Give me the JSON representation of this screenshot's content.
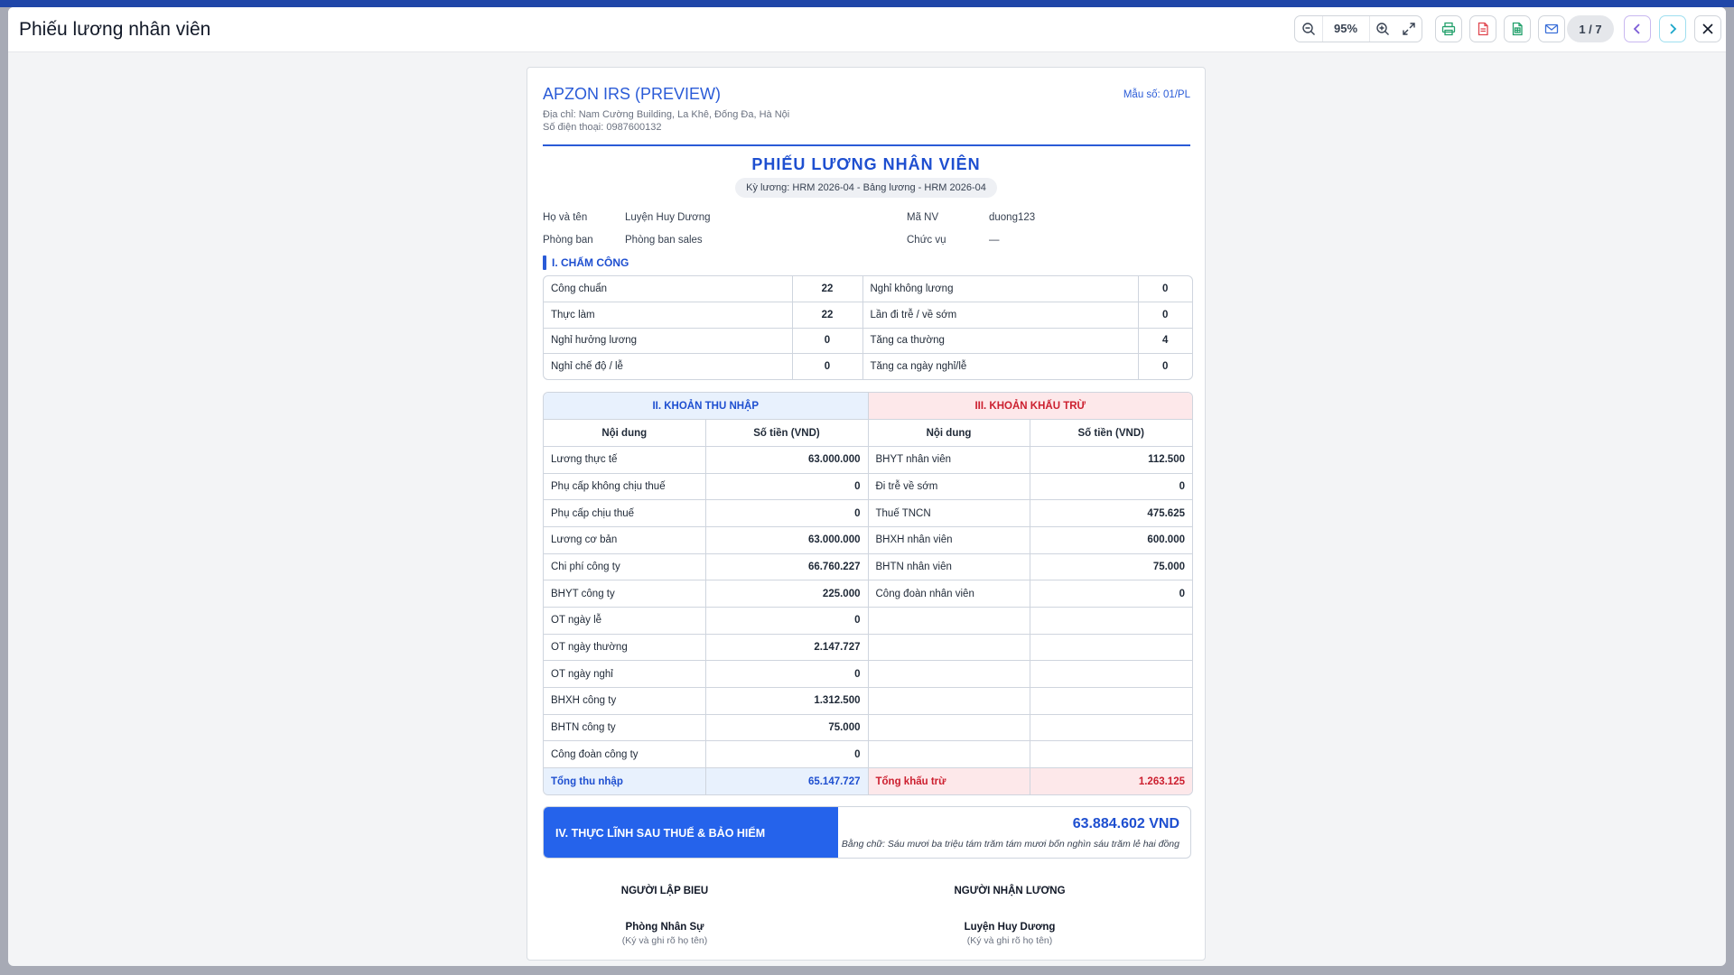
{
  "window": {
    "title": "Phiếu lương nhân viên"
  },
  "toolbar": {
    "zoom": "95%",
    "page": "1 / 7"
  },
  "colors": {
    "accent": "#2a5bd7",
    "income_bg": "#e8f1fd",
    "deduction_bg": "#fde8ea",
    "deduction_text": "#cc1f2f",
    "net_bg": "#2563eb"
  },
  "icons": [
    "zoom-out-icon",
    "zoom-in-icon",
    "fullscreen-icon",
    "print-icon",
    "pdf-icon",
    "excel-icon",
    "mail-icon",
    "chevron-left-icon",
    "chevron-right-icon",
    "close-icon"
  ],
  "sheet": {
    "company": "APZON IRS (PREVIEW)",
    "address": "Địa chỉ: Nam Cường Building, La Khê, Đống Đa, Hà Nội",
    "phone": "Số điện thoại: 0987600132",
    "form_no": "Mẫu số: 01/PL",
    "title": "PHIẾU LƯƠNG NHÂN VIÊN",
    "period": "Kỳ lương: HRM 2026-04 - Bảng lương - HRM 2026-04",
    "employee": {
      "name_label": "Họ và tên",
      "name": "Luyện Huy Dương",
      "dept_label": "Phòng ban",
      "dept": "Phòng ban sales",
      "id_label": "Mã NV",
      "id": "duong123",
      "position_label": "Chức vụ",
      "position": "—"
    },
    "attendance": {
      "title": "I. CHẤM CÔNG",
      "rows": [
        [
          "Công chuẩn",
          "22",
          "Nghỉ không lương",
          "0"
        ],
        [
          "Thực làm",
          "22",
          "Lần đi trễ / về sớm",
          "0"
        ],
        [
          "Nghỉ hưởng lương",
          "0",
          "Tăng ca thường",
          "4"
        ],
        [
          "Nghỉ chế độ / lễ",
          "0",
          "Tăng ca ngày nghỉ/lễ",
          "0"
        ]
      ]
    },
    "income_title": "II. KHOẢN THU NHẬP",
    "deduction_title": "III. KHOẢN KHẤU TRỪ",
    "col_content": "Nội dung",
    "col_amount": "Số tiền (VND)",
    "rows": [
      [
        "Lương thực tế",
        "63.000.000",
        "BHYT nhân viên",
        "112.500"
      ],
      [
        "Phụ cấp không chịu thuế",
        "0",
        "Đi trễ về sớm",
        "0"
      ],
      [
        "Phụ cấp chịu thuế",
        "0",
        "Thuế TNCN",
        "475.625"
      ],
      [
        "Lương cơ bản",
        "63.000.000",
        "BHXH nhân viên",
        "600.000"
      ],
      [
        "Chi phí công ty",
        "66.760.227",
        "BHTN nhân viên",
        "75.000"
      ],
      [
        "BHYT công ty",
        "225.000",
        "Công đoàn nhân viên",
        "0"
      ],
      [
        "OT ngày lễ",
        "0",
        "",
        ""
      ],
      [
        "OT ngày thường",
        "2.147.727",
        "",
        ""
      ],
      [
        "OT ngày nghỉ",
        "0",
        "",
        ""
      ],
      [
        "BHXH công ty",
        "1.312.500",
        "",
        ""
      ],
      [
        "BHTN công ty",
        "75.000",
        "",
        ""
      ],
      [
        "Công đoàn công ty",
        "0",
        "",
        ""
      ]
    ],
    "total_income_label": "Tổng thu nhập",
    "total_income": "65.147.727",
    "total_deduction_label": "Tổng khấu trừ",
    "total_deduction": "1.263.125",
    "net_title": "IV. THỰC LĨNH SAU THUẾ & BẢO HIỂM",
    "net_amount": "63.884.602 VND",
    "net_words": "Bằng chữ: Sáu mươi ba triệu tám trăm tám mươi bốn nghìn sáu trăm lẻ hai đồng",
    "signatures": {
      "preparer_title": "NGƯỜI LẬP BIEU",
      "preparer_name": "Phòng Nhân Sự",
      "receiver_title": "NGƯỜI NHẬN LƯƠNG",
      "receiver_name": "Luyện Huy Dương",
      "note": "(Ký và ghi rõ họ tên)"
    }
  }
}
